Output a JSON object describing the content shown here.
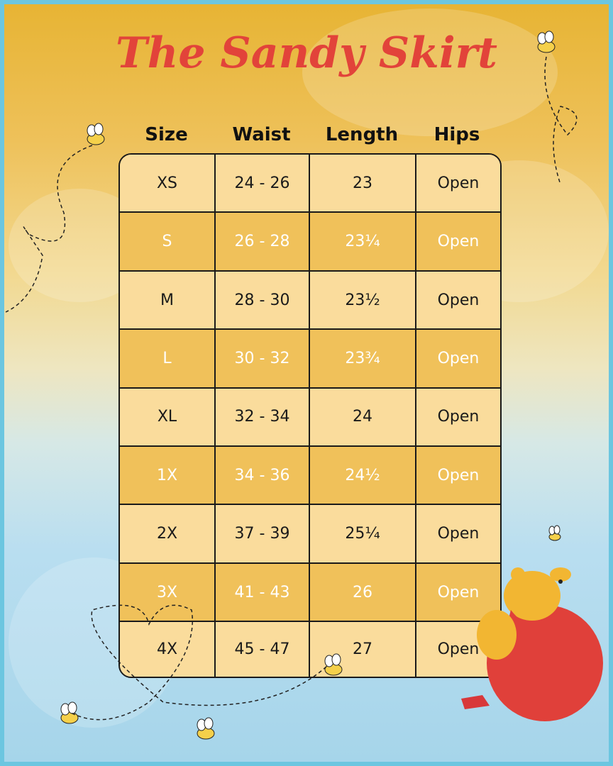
{
  "title": "The Sandy Skirt",
  "headers": [
    "Size",
    "Waist",
    "Length",
    "Hips"
  ],
  "rows": [
    [
      "XS",
      "24 - 26",
      "23",
      "Open"
    ],
    [
      "S",
      "26 - 28",
      "23¼",
      "Open"
    ],
    [
      "M",
      "28 - 30",
      "23½",
      "Open"
    ],
    [
      "L",
      "30 - 32",
      "23¾",
      "Open"
    ],
    [
      "XL",
      "32 - 34",
      "24",
      "Open"
    ],
    [
      "1X",
      "34 - 36",
      "24½",
      "Open"
    ],
    [
      "2X",
      "37 - 39",
      "25¼",
      "Open"
    ],
    [
      "3X",
      "41 - 43",
      "26",
      "Open"
    ],
    [
      "4X",
      "45 - 47",
      "27",
      "Open"
    ]
  ],
  "colors": {
    "title": "#e2433a",
    "row_light": "#fadc9c",
    "row_dark": "#f0c15a",
    "frame": "#6cc6e0"
  },
  "decorations": [
    "bee-icon",
    "winnie-the-pooh-illustration",
    "balloon-illustration",
    "cloud-background"
  ]
}
